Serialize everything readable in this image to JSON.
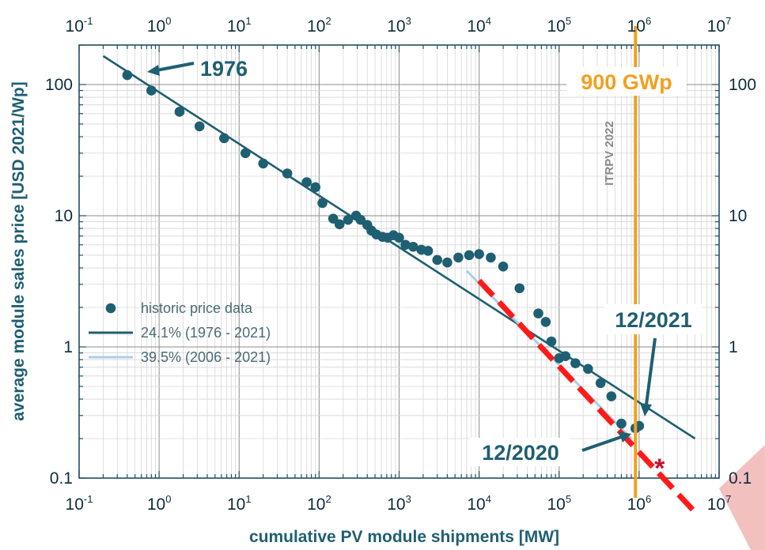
{
  "chart_data": {
    "type": "scatter",
    "title": "",
    "xlabel": "cumulative PV module shipments [MW]",
    "ylabel": "average module sales price [USD 2021/Wp]",
    "xscale": "log",
    "yscale": "log",
    "xlim": [
      0.1,
      10000000
    ],
    "ylim": [
      0.1,
      200
    ],
    "grid": true,
    "x_ticks": [
      {
        "value": 0.1,
        "base": "10",
        "exp": "-1"
      },
      {
        "value": 1,
        "base": "10",
        "exp": "0"
      },
      {
        "value": 10,
        "base": "10",
        "exp": "1"
      },
      {
        "value": 100,
        "base": "10",
        "exp": "2"
      },
      {
        "value": 1000,
        "base": "10",
        "exp": "3"
      },
      {
        "value": 10000,
        "base": "10",
        "exp": "4"
      },
      {
        "value": 100000,
        "base": "10",
        "exp": "5"
      },
      {
        "value": 1000000,
        "base": "10",
        "exp": "6"
      },
      {
        "value": 10000000,
        "base": "10",
        "exp": "7"
      }
    ],
    "y_ticks": [
      {
        "value": 100,
        "label": "100"
      },
      {
        "value": 10,
        "label": "10"
      },
      {
        "value": 1,
        "label": "1"
      },
      {
        "value": 0.1,
        "label": "0.1"
      }
    ],
    "legend_position": "left-middle",
    "series": [
      {
        "name": "historic price data",
        "kind": "scatter",
        "color": "#1f5f72",
        "points": [
          [
            0.4,
            118
          ],
          [
            0.8,
            90
          ],
          [
            1.8,
            62
          ],
          [
            3.2,
            48
          ],
          [
            6.5,
            39
          ],
          [
            12,
            30
          ],
          [
            20,
            25
          ],
          [
            40,
            21
          ],
          [
            70,
            18
          ],
          [
            90,
            16.5
          ],
          [
            110,
            12.5
          ],
          [
            150,
            9.5
          ],
          [
            180,
            8.6
          ],
          [
            230,
            9.3
          ],
          [
            290,
            10
          ],
          [
            330,
            9.3
          ],
          [
            400,
            8.5
          ],
          [
            450,
            7.7
          ],
          [
            520,
            7.2
          ],
          [
            620,
            6.9
          ],
          [
            720,
            6.8
          ],
          [
            850,
            7.1
          ],
          [
            1000,
            6.8
          ],
          [
            1200,
            6
          ],
          [
            1500,
            5.8
          ],
          [
            1900,
            5.5
          ],
          [
            2300,
            5.4
          ],
          [
            3000,
            4.6
          ],
          [
            4000,
            4.4
          ],
          [
            5500,
            4.8
          ],
          [
            7500,
            5
          ],
          [
            10000,
            5.1
          ],
          [
            14000,
            4.8
          ],
          [
            20000,
            4.1
          ],
          [
            32000,
            2.8
          ],
          [
            55000,
            1.8
          ],
          [
            68000,
            1.55
          ],
          [
            80000,
            1.1
          ],
          [
            100000,
            0.82
          ],
          [
            120000,
            0.85
          ],
          [
            160000,
            0.75
          ],
          [
            230000,
            0.68
          ],
          [
            330000,
            0.53
          ],
          [
            450000,
            0.42
          ],
          [
            600000,
            0.26
          ],
          [
            900000,
            0.24
          ],
          [
            1000000,
            0.25
          ]
        ]
      },
      {
        "name": "24.1% (1976 - 2021)",
        "kind": "line",
        "color": "#1f5f72",
        "points": [
          [
            0.2,
            165
          ],
          [
            5000000,
            0.2
          ]
        ]
      },
      {
        "name": "39.5% (2006 - 2021)",
        "kind": "line",
        "color": "#a9cfe3",
        "points": [
          [
            7000,
            3.8
          ],
          [
            800000,
            0.2
          ]
        ]
      }
    ],
    "projection": {
      "color": "#ff1a1a",
      "points": [
        [
          10000,
          3.2
        ],
        [
          5000000,
          0.055
        ]
      ],
      "marker": {
        "symbol": "*",
        "x": 1800000,
        "y": 0.12
      }
    },
    "threshold": {
      "label": "900 GWp",
      "value": 900000,
      "color": "#f0a020",
      "note": "ITRPV 2022"
    },
    "annotations": [
      {
        "text": "1976",
        "x": 0.4,
        "y": 118
      },
      {
        "text": "12/2021",
        "x": 1000000,
        "y": 0.25
      },
      {
        "text": "12/2020",
        "x": 900000,
        "y": 0.22
      }
    ],
    "colors": {
      "primary": "#1f5f72",
      "light_line": "#a9cfe3",
      "projection": "#ff1a1a",
      "threshold": "#f0a020",
      "cone_fill": "#f2b9b9"
    }
  }
}
